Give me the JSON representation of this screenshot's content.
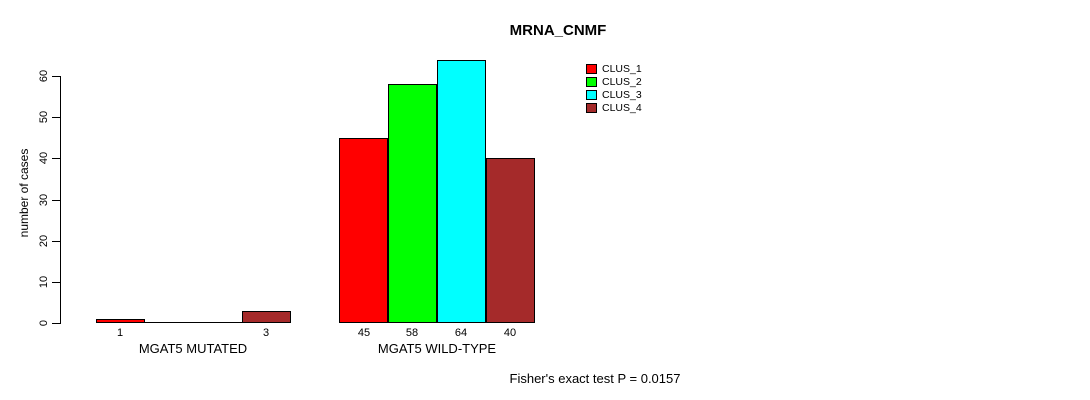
{
  "chart_data": {
    "type": "bar",
    "title": "MRNA_CNMF",
    "ylabel": "number of cases",
    "xlabel": "",
    "ylim": [
      0,
      60
    ],
    "yticks": [
      0,
      10,
      20,
      30,
      40,
      50,
      60
    ],
    "grid": false,
    "legend_position": "top-right-inside",
    "categories": [
      "MGAT5 MUTATED",
      "MGAT5 WILD-TYPE"
    ],
    "series": [
      {
        "name": "CLUS_1",
        "color": "#FF0000",
        "values": [
          1,
          45
        ]
      },
      {
        "name": "CLUS_2",
        "color": "#00FF00",
        "values": [
          0,
          58
        ]
      },
      {
        "name": "CLUS_3",
        "color": "#00FFFF",
        "values": [
          0,
          64
        ]
      },
      {
        "name": "CLUS_4",
        "color": "#A52A2A",
        "values": [
          3,
          40
        ]
      }
    ],
    "bar_value_labels_shown_when_zero": false,
    "annotations": [
      "Fisher's exact test P = 0.0157"
    ]
  }
}
